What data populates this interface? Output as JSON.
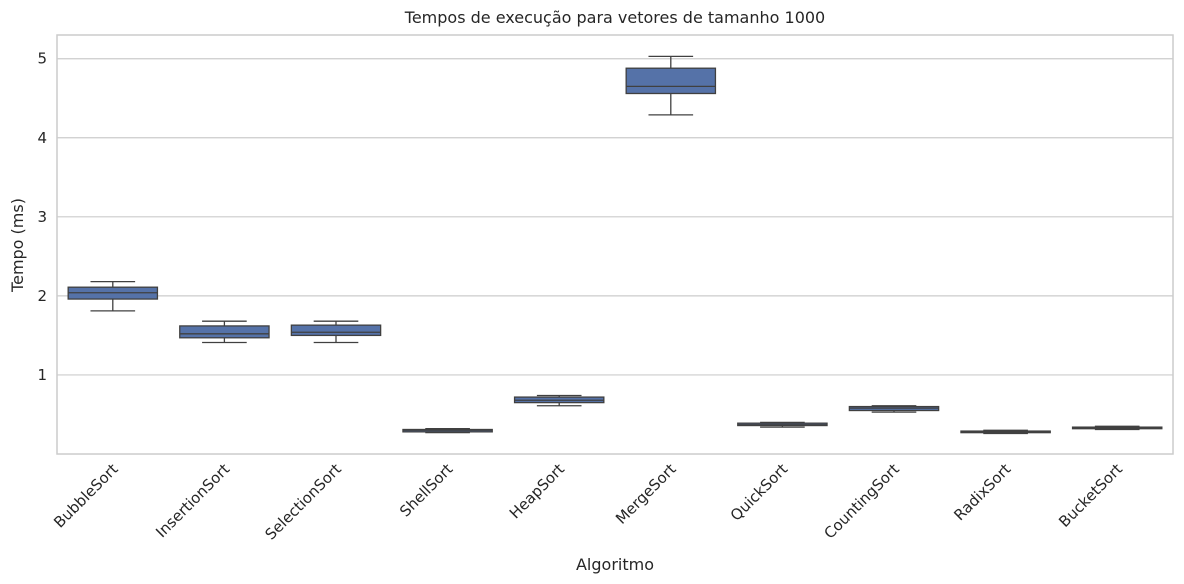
{
  "chart_data": {
    "type": "boxplot",
    "title": "Tempos de execução para vetores de tamanho 1000",
    "xlabel": "Algoritmo",
    "ylabel": "Tempo (ms)",
    "ylim": [
      0,
      5.3
    ],
    "yticks": [
      1,
      2,
      3,
      4,
      5
    ],
    "grid": "horizontal",
    "color": "#5572a8",
    "categories": [
      "BubbleSort",
      "InsertionSort",
      "SelectionSort",
      "ShellSort",
      "HeapSort",
      "MergeSort",
      "QuickSort",
      "CountingSort",
      "RadixSort",
      "BucketSort"
    ],
    "boxes": [
      {
        "whislo": 1.81,
        "q1": 1.96,
        "med": 2.04,
        "q3": 2.11,
        "whishi": 2.18
      },
      {
        "whislo": 1.41,
        "q1": 1.47,
        "med": 1.52,
        "q3": 1.62,
        "whishi": 1.68
      },
      {
        "whislo": 1.41,
        "q1": 1.5,
        "med": 1.54,
        "q3": 1.63,
        "whishi": 1.68
      },
      {
        "whislo": 0.27,
        "q1": 0.28,
        "med": 0.3,
        "q3": 0.31,
        "whishi": 0.32
      },
      {
        "whislo": 0.61,
        "q1": 0.65,
        "med": 0.68,
        "q3": 0.72,
        "whishi": 0.74
      },
      {
        "whislo": 4.29,
        "q1": 4.56,
        "med": 4.65,
        "q3": 4.88,
        "whishi": 5.03
      },
      {
        "whislo": 0.34,
        "q1": 0.36,
        "med": 0.37,
        "q3": 0.39,
        "whishi": 0.4
      },
      {
        "whislo": 0.53,
        "q1": 0.55,
        "med": 0.58,
        "q3": 0.6,
        "whishi": 0.61
      },
      {
        "whislo": 0.26,
        "q1": 0.27,
        "med": 0.28,
        "q3": 0.29,
        "whishi": 0.3
      },
      {
        "whislo": 0.31,
        "q1": 0.32,
        "med": 0.33,
        "q3": 0.34,
        "whishi": 0.35
      }
    ]
  }
}
